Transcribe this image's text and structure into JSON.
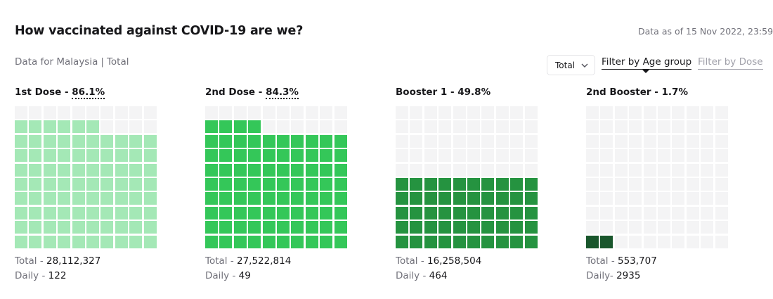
{
  "header": {
    "title": "How vaccinated against COVID-19 are we?",
    "as_of": "Data as of 15 Nov 2022, 23:59",
    "subtitle_left": "Data for Malaysia",
    "subtitle_sep": "|",
    "subtitle_right": "Total"
  },
  "controls": {
    "total_select": "Total",
    "filter_age": "Filter by Age group",
    "filter_dose": "Filter by Dose"
  },
  "colors": {
    "empty": "#f4f4f5",
    "dose1": "#a4e8b6",
    "dose2": "#34c759",
    "booster1": "#259340",
    "booster2": "#19562c"
  },
  "chart_data": {
    "type": "waffle",
    "grid": {
      "rows": 10,
      "cols": 10
    },
    "panels": [
      {
        "label": "1st Dose",
        "dash": " - ",
        "percent_text": "86.1%",
        "percent": 86.1,
        "underline": true,
        "color_key": "dose1",
        "total_label": "Total",
        "total_dash": " - ",
        "total_value": "28,112,327",
        "daily_label": "Daily",
        "daily_dash": " - ",
        "daily_value": "122"
      },
      {
        "label": "2nd Dose",
        "dash": " - ",
        "percent_text": "84.3%",
        "percent": 84.3,
        "underline": true,
        "color_key": "dose2",
        "total_label": "Total",
        "total_dash": " - ",
        "total_value": "27,522,814",
        "daily_label": "Daily",
        "daily_dash": " - ",
        "daily_value": "49"
      },
      {
        "label": "Booster 1",
        "dash": " - ",
        "percent_text": "49.8%",
        "percent": 49.8,
        "underline": false,
        "color_key": "booster1",
        "total_label": "Total",
        "total_dash": " - ",
        "total_value": "16,258,504",
        "daily_label": "Daily",
        "daily_dash": " - ",
        "daily_value": "464"
      },
      {
        "label": "2nd Booster",
        "dash": " - ",
        "percent_text": "1.7%",
        "percent": 1.7,
        "underline": false,
        "color_key": "booster2",
        "total_label": "Total",
        "total_dash": " - ",
        "total_value": "553,707",
        "daily_label": "Daily",
        "daily_dash": "- ",
        "daily_value": "2935"
      }
    ]
  }
}
